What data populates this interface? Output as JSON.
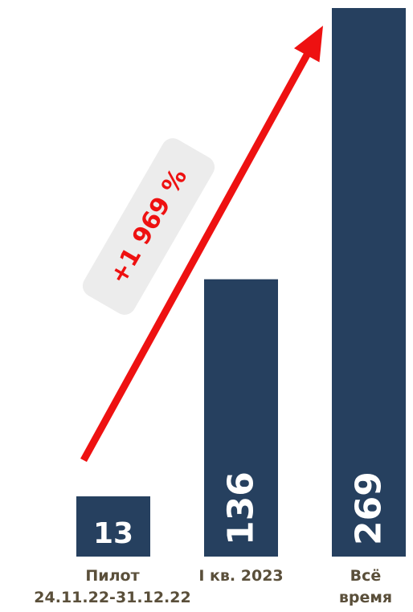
{
  "colors": {
    "bar": "#26405f",
    "bar_text": "#ffffff",
    "arrow": "#ee1111",
    "badge_bg": "#ececec",
    "badge_text": "#ee1111",
    "category_text": "#5a4f3a"
  },
  "annotation": {
    "text": "+1 969 %"
  },
  "chart_data": {
    "type": "bar",
    "title": "",
    "xlabel": "",
    "ylabel": "",
    "categories": [
      [
        "Пилот",
        "24.11.22-31.12.22"
      ],
      [
        "I кв. 2023"
      ],
      [
        "Всё",
        "время"
      ]
    ],
    "values": [
      13,
      136,
      269
    ],
    "value_labels": [
      "13",
      "136",
      "269"
    ],
    "ylim": [
      0,
      269
    ],
    "grid": false,
    "legend": "none"
  }
}
